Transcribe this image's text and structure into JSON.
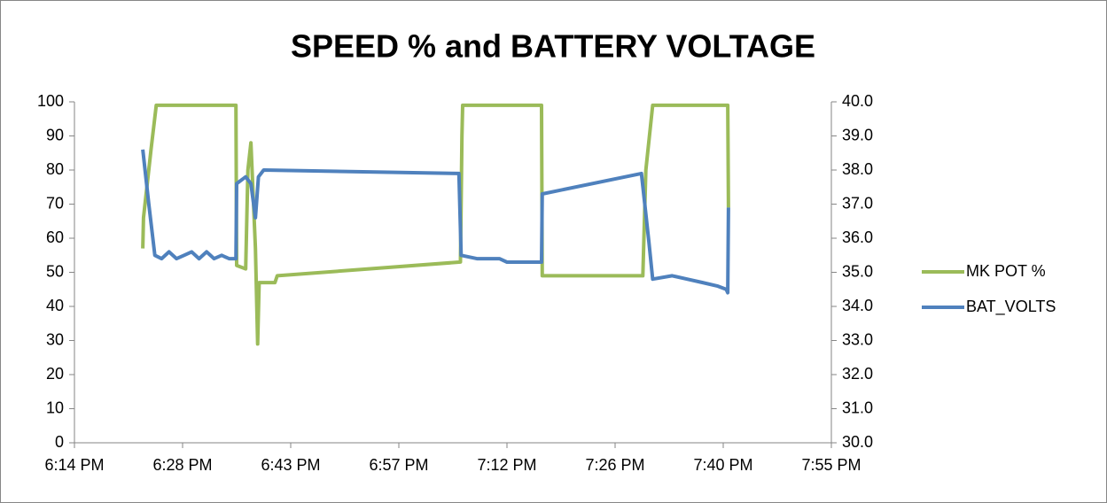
{
  "chart_data": {
    "type": "line",
    "title": "SPEED % and BATTERY VOLTAGE",
    "xlim": [
      1094.4,
      1195.2
    ],
    "xticks": [
      {
        "value": 1094.4,
        "label": "6:14 PM"
      },
      {
        "value": 1108.8,
        "label": "6:28 PM"
      },
      {
        "value": 1123.2,
        "label": "6:43 PM"
      },
      {
        "value": 1137.6,
        "label": "6:57 PM"
      },
      {
        "value": 1152.0,
        "label": "7:12 PM"
      },
      {
        "value": 1166.4,
        "label": "7:26 PM"
      },
      {
        "value": 1180.8,
        "label": "7:40 PM"
      },
      {
        "value": 1195.2,
        "label": "7:55 PM"
      }
    ],
    "ylim": [
      0,
      100
    ],
    "yticks": [
      0,
      10,
      20,
      30,
      40,
      50,
      60,
      70,
      80,
      90,
      100
    ],
    "y2lim": [
      30,
      40
    ],
    "y2ticks": [
      {
        "value": 30,
        "label": "30.0"
      },
      {
        "value": 31,
        "label": "31.0"
      },
      {
        "value": 32,
        "label": "32.0"
      },
      {
        "value": 33,
        "label": "33.0"
      },
      {
        "value": 34,
        "label": "34.0"
      },
      {
        "value": 35,
        "label": "35.0"
      },
      {
        "value": 36,
        "label": "36.0"
      },
      {
        "value": 37,
        "label": "37.0"
      },
      {
        "value": 38,
        "label": "38.0"
      },
      {
        "value": 39,
        "label": "39.0"
      },
      {
        "value": 40,
        "label": "40.0"
      }
    ],
    "grid": false,
    "legend": "right",
    "series": [
      {
        "name": "MK POT %",
        "color": "#9bbb59",
        "x": [
          1103.5,
          1103.6,
          1104.6,
          1105.3,
          1115.9,
          1116.0,
          1117.2,
          1117.5,
          1117.9,
          1118.5,
          1118.8,
          1119.0,
          1121.1,
          1121.4,
          1145.8,
          1146.0,
          1146.1,
          1156.6,
          1156.7,
          1170.1,
          1170.5,
          1171.4,
          1181.4,
          1181.5
        ],
        "values": [
          57,
          66,
          86,
          99,
          99,
          52,
          51,
          80,
          88,
          57,
          29,
          47,
          47,
          49,
          53,
          90,
          99,
          99,
          49,
          49,
          80,
          99,
          99,
          69
        ]
      },
      {
        "name": "BAT_VOLTS",
        "color": "#4f81bd",
        "axis": "y2",
        "x": [
          1103.5,
          1104.3,
          1105.1,
          1106,
          1107,
          1108,
          1109,
          1110,
          1111,
          1112,
          1113,
          1114,
          1115,
          1115.9,
          1116.0,
          1117.2,
          1117.9,
          1118.5,
          1118.9,
          1119.6,
          1145.6,
          1145.9,
          1148,
          1151,
          1152,
          1156.6,
          1156.7,
          1169.9,
          1170.9,
          1171.4,
          1174,
          1176,
          1178,
          1180,
          1181.2,
          1181.4,
          1181.5
        ],
        "values": [
          38.6,
          37.0,
          35.5,
          35.4,
          35.6,
          35.4,
          35.5,
          35.6,
          35.4,
          35.6,
          35.4,
          35.5,
          35.4,
          35.4,
          37.6,
          37.8,
          37.6,
          36.6,
          37.8,
          38.0,
          37.9,
          35.5,
          35.4,
          35.4,
          35.3,
          35.3,
          37.3,
          37.9,
          35.9,
          34.8,
          34.9,
          34.8,
          34.7,
          34.6,
          34.5,
          34.4,
          36.9
        ]
      }
    ]
  }
}
